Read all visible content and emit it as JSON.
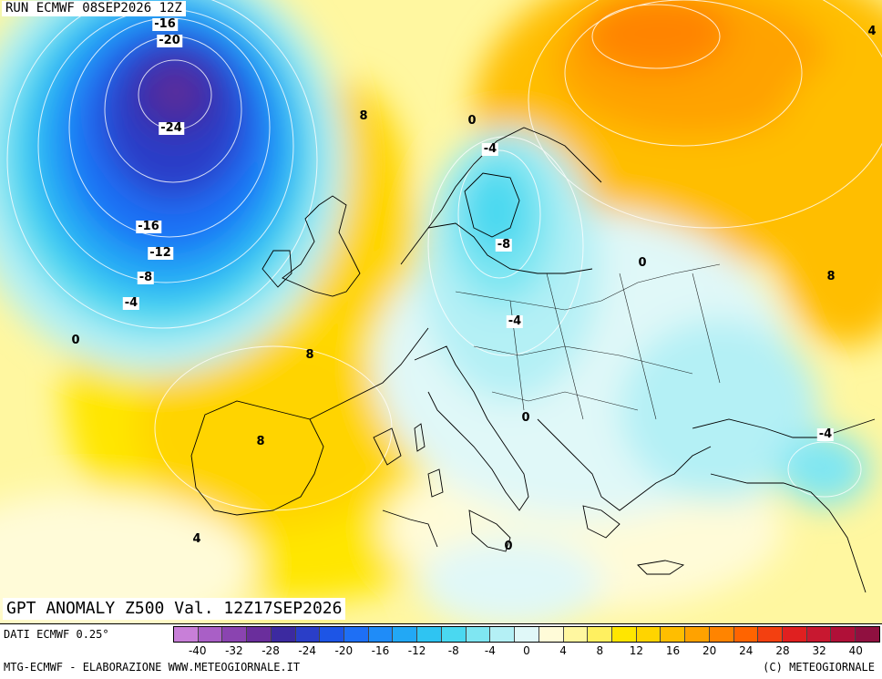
{
  "header": {
    "run_label": "RUN ECMWF 08SEP2026 12Z"
  },
  "field_title": "GPT ANOMALY Z500 Val. 12Z17SEP2026",
  "footer": {
    "data_source": "DATI ECMWF 0.25°",
    "credits": "MTG-ECMWF - ELABORAZIONE WWW.METEOGIORNALE.IT",
    "copyright": "(C) METEOGIORNALE"
  },
  "colors": {
    "sea_background": "#fffdf0",
    "coastline": "#000000",
    "contour": "#ffffff"
  },
  "colorbar": {
    "colors": [
      "#c87fd8",
      "#a95fc6",
      "#8a44b0",
      "#6a2e9c",
      "#3c2aa0",
      "#2a3ec8",
      "#1d55e6",
      "#1e6ff5",
      "#1f8cf8",
      "#22a8f5",
      "#2fc4f2",
      "#4ad8f0",
      "#7fe6f2",
      "#b4f0f5",
      "#e0f8f8",
      "#fffbd8",
      "#fff7a0",
      "#fff060",
      "#ffe600",
      "#ffd400",
      "#ffbe00",
      "#ffa200",
      "#ff8400",
      "#ff6400",
      "#f34010",
      "#e02020",
      "#c81830",
      "#b01038",
      "#901040"
    ],
    "ticks": [
      "-40",
      "-32",
      "-28",
      "-24",
      "-20",
      "-16",
      "-12",
      "-8",
      "-4",
      "0",
      "4",
      "8",
      "12",
      "16",
      "20",
      "24",
      "28",
      "32",
      "40"
    ]
  },
  "map": {
    "anomaly_centers": [
      {
        "name": "north-atlantic-low",
        "value": -28
      },
      {
        "name": "scandinavia-trough",
        "value": -10
      },
      {
        "name": "russia-ridge",
        "value": 20
      },
      {
        "name": "iberia-ridge",
        "value": 9
      },
      {
        "name": "eastern-med-low",
        "value": -6
      }
    ],
    "contour_labels": [
      {
        "text": "-16",
        "boxed": true
      },
      {
        "text": "-20",
        "boxed": true
      },
      {
        "text": "-24",
        "boxed": true
      },
      {
        "text": "-16",
        "boxed": true
      },
      {
        "text": "-12",
        "boxed": true
      },
      {
        "text": "-8",
        "boxed": true
      },
      {
        "text": "-4",
        "boxed": true
      },
      {
        "text": "0",
        "boxed": false
      },
      {
        "text": "8",
        "boxed": false
      },
      {
        "text": "8",
        "boxed": false
      },
      {
        "text": "8",
        "boxed": false
      },
      {
        "text": "4",
        "boxed": false
      },
      {
        "text": "0",
        "boxed": false
      },
      {
        "text": "-4",
        "boxed": true
      },
      {
        "text": "-8",
        "boxed": true
      },
      {
        "text": "0",
        "boxed": false
      },
      {
        "text": "-4",
        "boxed": true
      },
      {
        "text": "0",
        "boxed": false
      },
      {
        "text": "0",
        "boxed": false
      },
      {
        "text": "8",
        "boxed": false
      },
      {
        "text": "4",
        "boxed": false
      },
      {
        "text": "-4",
        "boxed": true
      }
    ]
  }
}
